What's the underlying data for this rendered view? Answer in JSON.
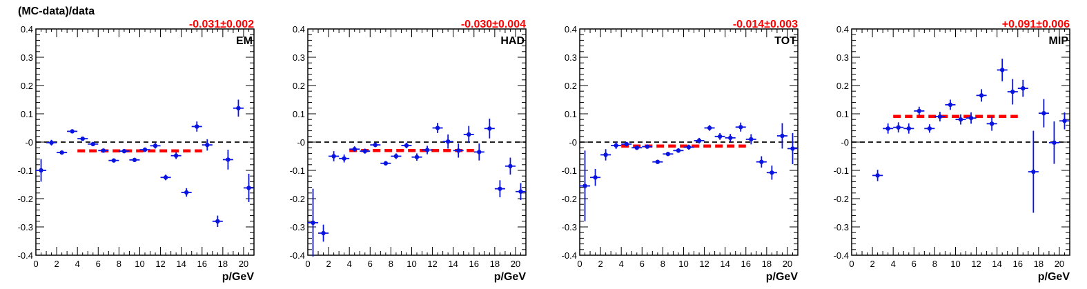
{
  "figure": {
    "ylabel": "(MC-data)/data",
    "xlabel": "p/GeV"
  },
  "chart_data": [
    {
      "type": "scatter",
      "label": "EM",
      "fit_text": "-0.031±0.002",
      "xlim": [
        0,
        21
      ],
      "ylim": [
        -0.4,
        0.4
      ],
      "x_ticks": [
        "0",
        "2",
        "4",
        "6",
        "8",
        "10",
        "12",
        "14",
        "16",
        "18",
        "20"
      ],
      "y_ticks": [
        "0.4",
        "0.3",
        "0.2",
        "0.1",
        "-0",
        "-0.1",
        "-0.2",
        "-0.3",
        "-0.4"
      ],
      "reference_line": 0,
      "fit": {
        "value": -0.031,
        "x_range": [
          4,
          16
        ]
      },
      "points": [
        {
          "x": 0.5,
          "y": -0.1,
          "err": 0.04
        },
        {
          "x": 1.5,
          "y": -0.002,
          "err": 0.01
        },
        {
          "x": 2.5,
          "y": -0.037,
          "err": 0.006
        },
        {
          "x": 3.5,
          "y": 0.038,
          "err": 0.005
        },
        {
          "x": 4.5,
          "y": 0.012,
          "err": 0.005
        },
        {
          "x": 5.5,
          "y": -0.007,
          "err": 0.005
        },
        {
          "x": 6.5,
          "y": -0.03,
          "err": 0.005
        },
        {
          "x": 7.5,
          "y": -0.065,
          "err": 0.006
        },
        {
          "x": 8.5,
          "y": -0.032,
          "err": 0.006
        },
        {
          "x": 9.5,
          "y": -0.063,
          "err": 0.007
        },
        {
          "x": 10.5,
          "y": -0.027,
          "err": 0.008
        },
        {
          "x": 11.5,
          "y": -0.013,
          "err": 0.01
        },
        {
          "x": 12.5,
          "y": -0.125,
          "err": 0.01
        },
        {
          "x": 13.5,
          "y": -0.048,
          "err": 0.012
        },
        {
          "x": 14.5,
          "y": -0.178,
          "err": 0.015
        },
        {
          "x": 15.5,
          "y": 0.055,
          "err": 0.018
        },
        {
          "x": 16.5,
          "y": -0.01,
          "err": 0.02
        },
        {
          "x": 17.5,
          "y": -0.28,
          "err": 0.02
        },
        {
          "x": 18.5,
          "y": -0.062,
          "err": 0.035
        },
        {
          "x": 19.5,
          "y": 0.12,
          "err": 0.03
        },
        {
          "x": 20.5,
          "y": -0.162,
          "err": 0.05
        }
      ]
    },
    {
      "type": "scatter",
      "label": "HAD",
      "fit_text": "-0.030±0.004",
      "xlim": [
        0,
        21
      ],
      "ylim": [
        -0.4,
        0.4
      ],
      "x_ticks": [
        "0",
        "2",
        "4",
        "6",
        "8",
        "10",
        "12",
        "14",
        "16",
        "18",
        "20"
      ],
      "y_ticks": [
        "0.4",
        "0.3",
        "0.2",
        "0.1",
        "-0",
        "-0.1",
        "-0.2",
        "-0.3",
        "-0.4"
      ],
      "reference_line": 0,
      "fit": {
        "value": -0.03,
        "x_range": [
          4,
          16
        ]
      },
      "points": [
        {
          "x": 0.5,
          "y": -0.285,
          "err": 0.12
        },
        {
          "x": 1.5,
          "y": -0.322,
          "err": 0.03
        },
        {
          "x": 2.5,
          "y": -0.05,
          "err": 0.018
        },
        {
          "x": 3.5,
          "y": -0.058,
          "err": 0.014
        },
        {
          "x": 4.5,
          "y": -0.025,
          "err": 0.01
        },
        {
          "x": 5.5,
          "y": -0.032,
          "err": 0.009
        },
        {
          "x": 6.5,
          "y": -0.01,
          "err": 0.008
        },
        {
          "x": 7.5,
          "y": -0.075,
          "err": 0.008
        },
        {
          "x": 8.5,
          "y": -0.05,
          "err": 0.01
        },
        {
          "x": 9.5,
          "y": -0.012,
          "err": 0.01
        },
        {
          "x": 10.5,
          "y": -0.053,
          "err": 0.013
        },
        {
          "x": 11.5,
          "y": -0.028,
          "err": 0.015
        },
        {
          "x": 12.5,
          "y": 0.05,
          "err": 0.018
        },
        {
          "x": 13.5,
          "y": 0.002,
          "err": 0.025
        },
        {
          "x": 14.5,
          "y": -0.03,
          "err": 0.025
        },
        {
          "x": 15.5,
          "y": 0.027,
          "err": 0.03
        },
        {
          "x": 16.5,
          "y": -0.035,
          "err": 0.03
        },
        {
          "x": 17.5,
          "y": 0.048,
          "err": 0.035
        },
        {
          "x": 18.5,
          "y": -0.165,
          "err": 0.03
        },
        {
          "x": 19.5,
          "y": -0.085,
          "err": 0.03
        },
        {
          "x": 20.5,
          "y": -0.175,
          "err": 0.03
        }
      ]
    },
    {
      "type": "scatter",
      "label": "TOT",
      "fit_text": "-0.014±0.003",
      "xlim": [
        0,
        21
      ],
      "ylim": [
        -0.4,
        0.4
      ],
      "x_ticks": [
        "0",
        "2",
        "4",
        "6",
        "8",
        "10",
        "12",
        "14",
        "16",
        "18",
        "20"
      ],
      "y_ticks": [
        "0.4",
        "0.3",
        "0.2",
        "0.1",
        "-0",
        "-0.1",
        "-0.2",
        "-0.3",
        "-0.4"
      ],
      "reference_line": 0,
      "fit": {
        "value": -0.014,
        "x_range": [
          4,
          16
        ]
      },
      "points": [
        {
          "x": 0.5,
          "y": -0.155,
          "err": 0.125
        },
        {
          "x": 1.5,
          "y": -0.125,
          "err": 0.03
        },
        {
          "x": 2.5,
          "y": -0.045,
          "err": 0.02
        },
        {
          "x": 3.5,
          "y": -0.012,
          "err": 0.012
        },
        {
          "x": 4.5,
          "y": -0.007,
          "err": 0.007
        },
        {
          "x": 5.5,
          "y": -0.02,
          "err": 0.007
        },
        {
          "x": 6.5,
          "y": -0.016,
          "err": 0.006
        },
        {
          "x": 7.5,
          "y": -0.07,
          "err": 0.006
        },
        {
          "x": 8.5,
          "y": -0.042,
          "err": 0.007
        },
        {
          "x": 9.5,
          "y": -0.03,
          "err": 0.008
        },
        {
          "x": 10.5,
          "y": -0.018,
          "err": 0.009
        },
        {
          "x": 11.5,
          "y": 0.005,
          "err": 0.01
        },
        {
          "x": 12.5,
          "y": 0.05,
          "err": 0.01
        },
        {
          "x": 13.5,
          "y": 0.02,
          "err": 0.012
        },
        {
          "x": 14.5,
          "y": 0.015,
          "err": 0.014
        },
        {
          "x": 15.5,
          "y": 0.053,
          "err": 0.016
        },
        {
          "x": 16.5,
          "y": 0.01,
          "err": 0.018
        },
        {
          "x": 17.5,
          "y": -0.07,
          "err": 0.02
        },
        {
          "x": 18.5,
          "y": -0.108,
          "err": 0.025
        },
        {
          "x": 19.5,
          "y": 0.022,
          "err": 0.045
        },
        {
          "x": 20.5,
          "y": -0.023,
          "err": 0.055
        }
      ]
    },
    {
      "type": "scatter",
      "label": "MIP",
      "fit_text": "+0.091±0.006",
      "xlim": [
        0,
        21
      ],
      "ylim": [
        -0.4,
        0.4
      ],
      "x_ticks": [
        "0",
        "2",
        "4",
        "6",
        "8",
        "10",
        "12",
        "14",
        "16",
        "18",
        "20"
      ],
      "y_ticks": [
        "0.4",
        "0.3",
        "0.2",
        "0.1",
        "-0",
        "-0.1",
        "-0.2",
        "-0.3",
        "-0.4"
      ],
      "reference_line": 0,
      "fit": {
        "value": 0.091,
        "x_range": [
          4,
          16
        ]
      },
      "points": [
        {
          "x": 2.5,
          "y": -0.118,
          "err": 0.02
        },
        {
          "x": 3.5,
          "y": 0.048,
          "err": 0.018
        },
        {
          "x": 4.5,
          "y": 0.052,
          "err": 0.018
        },
        {
          "x": 5.5,
          "y": 0.048,
          "err": 0.018
        },
        {
          "x": 6.5,
          "y": 0.11,
          "err": 0.015
        },
        {
          "x": 7.5,
          "y": 0.048,
          "err": 0.015
        },
        {
          "x": 8.5,
          "y": 0.09,
          "err": 0.017
        },
        {
          "x": 9.5,
          "y": 0.132,
          "err": 0.018
        },
        {
          "x": 10.5,
          "y": 0.08,
          "err": 0.018
        },
        {
          "x": 11.5,
          "y": 0.085,
          "err": 0.02
        },
        {
          "x": 12.5,
          "y": 0.165,
          "err": 0.022
        },
        {
          "x": 13.5,
          "y": 0.065,
          "err": 0.025
        },
        {
          "x": 14.5,
          "y": 0.255,
          "err": 0.04
        },
        {
          "x": 15.5,
          "y": 0.178,
          "err": 0.045
        },
        {
          "x": 16.5,
          "y": 0.19,
          "err": 0.03
        },
        {
          "x": 17.5,
          "y": -0.105,
          "err": 0.145
        },
        {
          "x": 18.5,
          "y": 0.102,
          "err": 0.05
        },
        {
          "x": 19.5,
          "y": -0.002,
          "err": 0.075
        },
        {
          "x": 20.5,
          "y": 0.075,
          "err": 0.03
        }
      ]
    }
  ],
  "colors": {
    "marker": "#0a14e0",
    "fit": "#ff0000",
    "fit_text": "#ff0000",
    "axis": "#000000",
    "reference": "#000000"
  }
}
